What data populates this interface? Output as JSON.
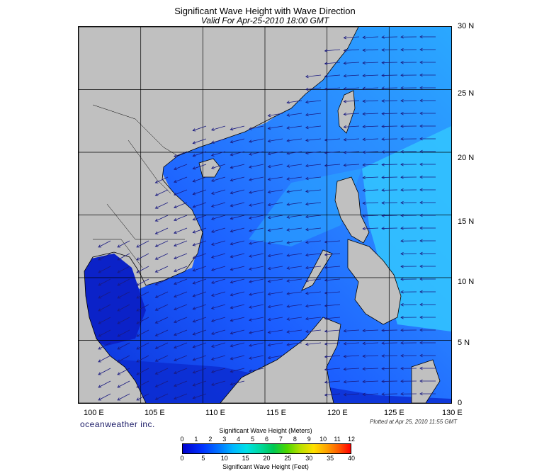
{
  "title": "Significant Wave Height with Wave Direction",
  "subtitle": "Valid For Apr-25-2010 18:00 GMT",
  "lat_labels": [
    "30 N",
    "25 N",
    "20 N",
    "15 N",
    "10 N",
    "5 N",
    "0"
  ],
  "lon_labels": [
    "100 E",
    "105 E",
    "110 E",
    "115 E",
    "120 E",
    "125 E",
    "130 E"
  ],
  "branding": "oceanweather inc.",
  "plotted_note": "Plotted at Apr 25, 2010 11:55 GMT",
  "colorbar": {
    "title_top": "Significant Wave Height (Meters)",
    "title_bottom": "Significant Wave Height (Feet)",
    "meters": [
      "0",
      "1",
      "2",
      "3",
      "4",
      "5",
      "6",
      "7",
      "8",
      "9",
      "10",
      "11",
      "12"
    ],
    "feet": [
      "0",
      "5",
      "10",
      "15",
      "20",
      "25",
      "30",
      "35",
      "40"
    ]
  },
  "colors": {
    "land": "#c0c0c0",
    "deep_blue": "#0a2fd6",
    "mid_blue": "#1b5cff",
    "light_blue": "#2aa8ff",
    "cyan": "#3fd4ff",
    "arrow": "#1a1a80"
  }
}
